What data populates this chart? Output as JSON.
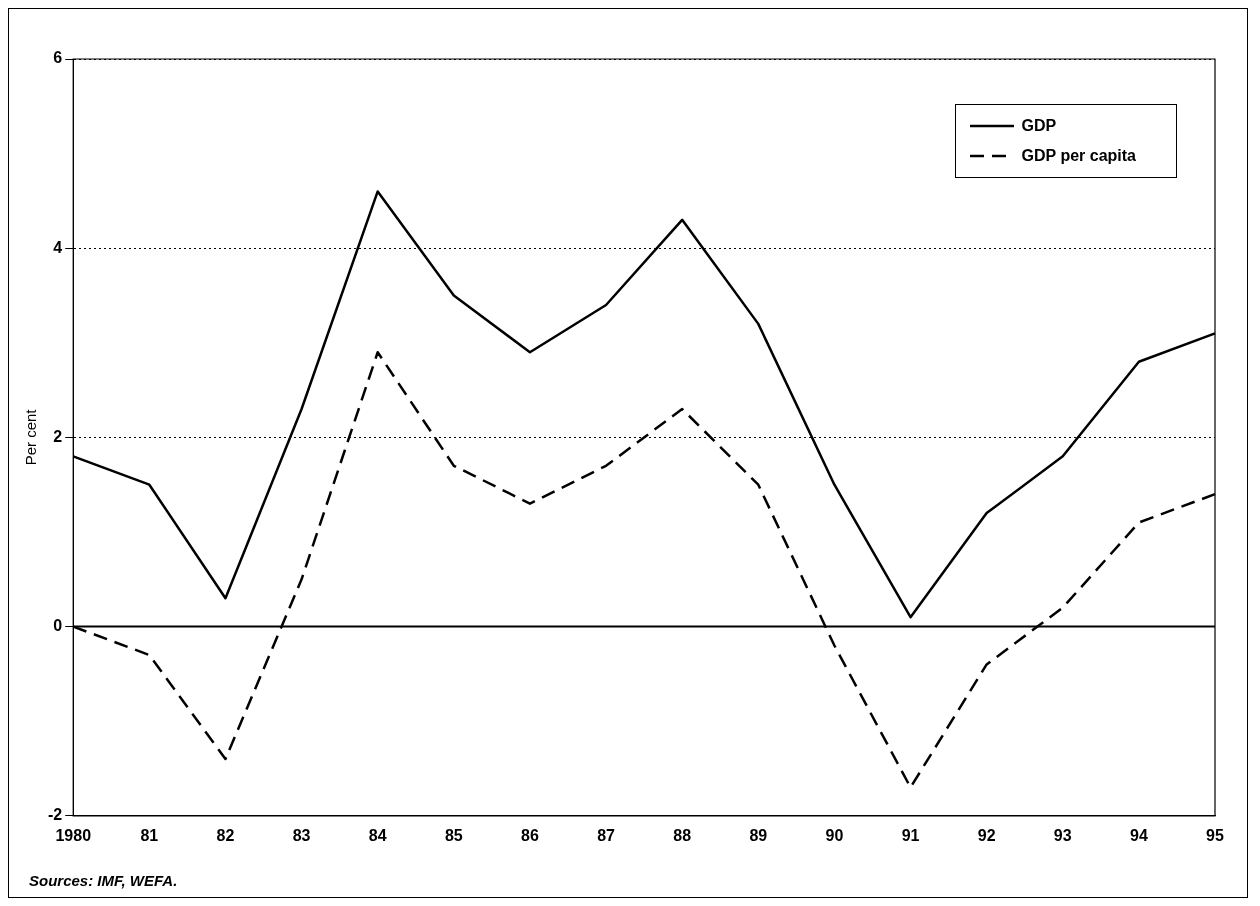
{
  "chart_data": {
    "type": "line",
    "ylabel": "Per cent",
    "categories": [
      "1980",
      "81",
      "82",
      "83",
      "84",
      "85",
      "86",
      "87",
      "88",
      "89",
      "90",
      "91",
      "92",
      "93",
      "94",
      "95"
    ],
    "series": [
      {
        "name": "GDP",
        "color": "#000000",
        "line_style": "solid",
        "values": [
          1.8,
          1.5,
          0.3,
          2.3,
          4.6,
          3.5,
          2.9,
          3.4,
          4.3,
          3.2,
          1.5,
          0.1,
          1.2,
          1.8,
          2.8,
          3.1
        ]
      },
      {
        "name": "GDP per capita",
        "color": "#000000",
        "line_style": "dashed",
        "values": [
          0,
          -0.3,
          -1.4,
          0.5,
          2.9,
          1.7,
          1.3,
          1.7,
          2.3,
          1.5,
          -0.2,
          -1.7,
          -0.4,
          0.2,
          1.1,
          1.4
        ]
      }
    ],
    "ylim": [
      -2,
      6
    ],
    "yticks": [
      -2,
      0,
      2,
      4,
      6
    ],
    "grid": "y",
    "legend": "top right",
    "marker": "none",
    "ref_lines": [
      {
        "axis": "y",
        "value": 0,
        "color": "#000000",
        "line_style": "solid"
      }
    ],
    "annotations": [
      "Sources: IMF, WEFA."
    ]
  }
}
